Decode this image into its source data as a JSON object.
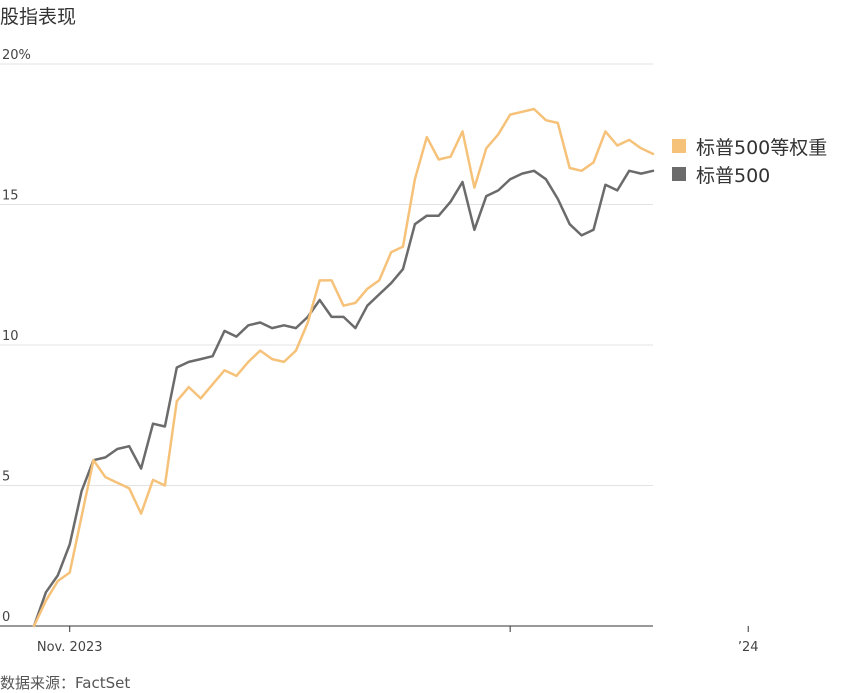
{
  "chart_data": {
    "type": "line",
    "title": "股指表现",
    "source": "数据来源：FactSet",
    "xlabel": "",
    "ylabel": "",
    "ylim": [
      0,
      20
    ],
    "yticks": [
      {
        "value": 0,
        "label": "0"
      },
      {
        "value": 5,
        "label": "5"
      },
      {
        "value": 10,
        "label": "10"
      },
      {
        "value": 15,
        "label": "15"
      },
      {
        "value": 20,
        "label": "20%"
      }
    ],
    "xticks": [
      {
        "index": 3,
        "label": "Nov. 2023"
      },
      {
        "index": 40,
        "label": ""
      },
      {
        "index": 60,
        "label": "’24"
      }
    ],
    "grid": "horizontal",
    "legend_position": "right",
    "series": [
      {
        "name": "标普500等权重",
        "color": "#f6c27a",
        "values": [
          0.0,
          0.9,
          1.6,
          1.9,
          3.9,
          5.9,
          5.3,
          5.1,
          4.9,
          4.0,
          5.2,
          5.0,
          8.0,
          8.5,
          8.1,
          8.6,
          9.1,
          8.9,
          9.4,
          9.8,
          9.5,
          9.4,
          9.8,
          10.8,
          12.3,
          12.3,
          11.4,
          11.5,
          12.0,
          12.3,
          13.3,
          13.5,
          15.9,
          17.4,
          16.6,
          16.7,
          17.6,
          15.6,
          17.0,
          17.5,
          18.2,
          18.3,
          18.4,
          18.0,
          17.9,
          16.3,
          16.2,
          16.5,
          17.6,
          17.1,
          17.3,
          17.0,
          16.8
        ]
      },
      {
        "name": "标普500",
        "color": "#6b6b6b",
        "values": [
          0.0,
          1.2,
          1.8,
          2.9,
          4.8,
          5.9,
          6.0,
          6.3,
          6.4,
          5.6,
          7.2,
          7.1,
          9.2,
          9.4,
          9.5,
          9.6,
          10.5,
          10.3,
          10.7,
          10.8,
          10.6,
          10.7,
          10.6,
          11.0,
          11.6,
          11.0,
          11.0,
          10.6,
          11.4,
          11.8,
          12.2,
          12.7,
          14.3,
          14.6,
          14.6,
          15.1,
          15.8,
          14.1,
          15.3,
          15.5,
          15.9,
          16.1,
          16.2,
          15.9,
          15.2,
          14.3,
          13.9,
          14.1,
          15.7,
          15.5,
          16.2,
          16.1,
          16.2
        ]
      }
    ]
  }
}
